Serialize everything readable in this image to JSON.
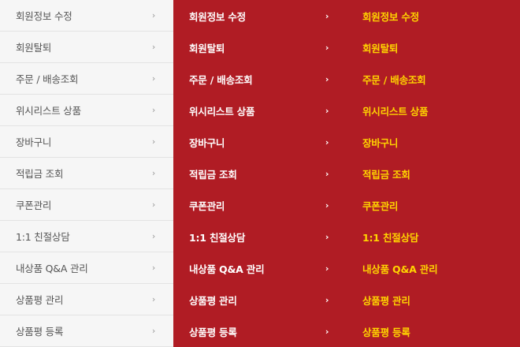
{
  "menu": {
    "items": [
      {
        "label": "회원정보 수정"
      },
      {
        "label": "회원탈퇴"
      },
      {
        "label": "주문 / 배송조회"
      },
      {
        "label": "위시리스트 상품"
      },
      {
        "label": "장바구니"
      },
      {
        "label": "적립금 조회"
      },
      {
        "label": "쿠폰관리"
      },
      {
        "label": "1:1 친절상담"
      },
      {
        "label": "내상품 Q&A 관리"
      },
      {
        "label": "상품평 관리"
      },
      {
        "label": "상품평 등록"
      }
    ],
    "chevron_icon": "chevron-right-icon",
    "colors": {
      "normal_bg": "#f6f6f6",
      "normal_text": "#555555",
      "hover_bg": "#b01c24",
      "hover_text": "#ffffff",
      "active_text": "#ffd400"
    }
  }
}
